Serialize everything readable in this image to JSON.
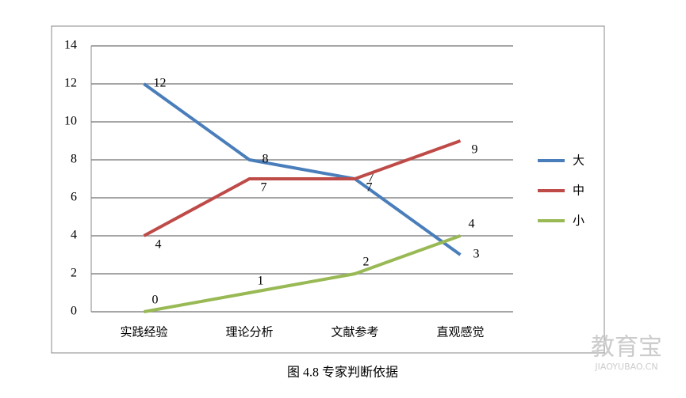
{
  "chart_data": {
    "type": "line",
    "caption": "图 4.8  专家判断依据",
    "categories": [
      "实践经验",
      "理论分析",
      "文献参考",
      "直观感觉"
    ],
    "series": [
      {
        "name": "大",
        "color": "#4a7ebb",
        "values": [
          12,
          8,
          7,
          3
        ]
      },
      {
        "name": "中",
        "color": "#be4b48",
        "values": [
          4,
          7,
          7,
          9
        ]
      },
      {
        "name": "小",
        "color": "#98b954",
        "values": [
          0,
          1,
          2,
          4
        ]
      }
    ],
    "ylim": [
      0,
      14
    ],
    "yticks": [
      0,
      2,
      4,
      6,
      8,
      10,
      12,
      14
    ],
    "grid": true,
    "legend": "right",
    "watermark": {
      "brand": "教育宝",
      "site": "JIAOYUBAO.CN"
    }
  }
}
